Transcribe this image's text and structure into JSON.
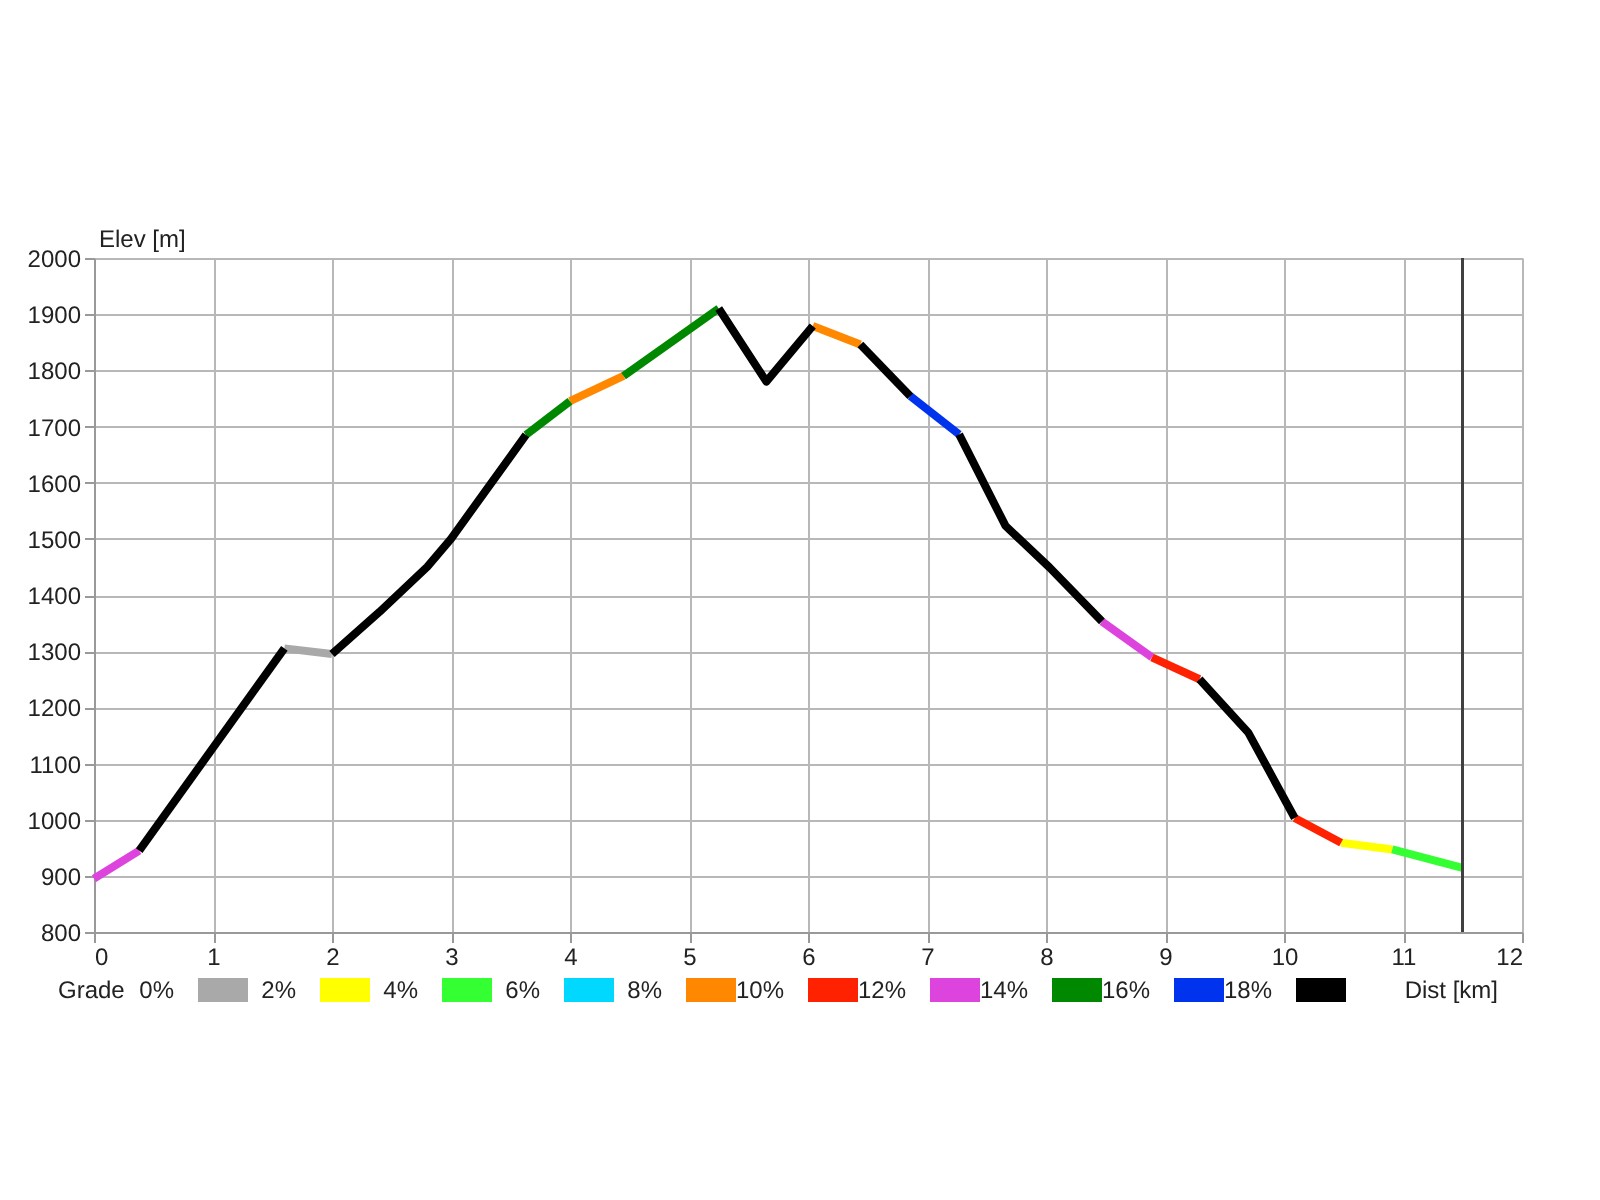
{
  "chart_data": {
    "type": "line",
    "xlabel": "Dist [km]",
    "ylabel": "Elev [m]",
    "legend_title": "Grade",
    "xlim": [
      0,
      12
    ],
    "xticks": [
      0,
      1,
      2,
      3,
      4,
      5,
      6,
      7,
      8,
      9,
      10,
      11,
      12
    ],
    "ylim": [
      800,
      2000
    ],
    "yticks": [
      800,
      900,
      1000,
      1100,
      1200,
      1300,
      1400,
      1500,
      1600,
      1700,
      1800,
      1900,
      2000
    ],
    "grid": true,
    "legend": "bottom",
    "ref_lines": [
      {
        "axis": "x",
        "value": 11.5,
        "color": "#404040"
      }
    ],
    "series": [
      {
        "name": "0%",
        "color": "#a9a9a9",
        "x": [
          1.6,
          2.0
        ],
        "values": [
          1305,
          1295
        ]
      },
      {
        "name": "2%",
        "color": "#ffff00",
        "x": [
          10.48,
          10.91
        ],
        "values": [
          959,
          947
        ]
      },
      {
        "name": "4%",
        "color": "#33ff33",
        "x": [
          10.91,
          11.5
        ],
        "values": [
          947,
          914
        ]
      },
      {
        "name": "6%",
        "color": "#00d8ff"
      },
      {
        "name": "8%",
        "color": "#ff8800",
        "x": [
          4.0,
          4.45,
          null,
          6.04,
          6.44
        ],
        "values": [
          1745,
          1790,
          null,
          1879,
          1846
        ]
      },
      {
        "name": "10%",
        "color": "#ff2200",
        "x": [
          8.89,
          9.29,
          null,
          10.09,
          10.48
        ],
        "values": [
          1289,
          1250,
          null,
          1003,
          959
        ]
      },
      {
        "name": "12%",
        "color": "#dd44dd",
        "x": [
          0,
          0.38,
          null,
          8.47,
          8.89
        ],
        "values": [
          895,
          945,
          null,
          1353,
          1289
        ]
      },
      {
        "name": "14%",
        "color": "#008800",
        "x": [
          3.63,
          4.0,
          null,
          4.45,
          5.25
        ],
        "values": [
          1685,
          1745,
          null,
          1790,
          1910
        ]
      },
      {
        "name": "16%",
        "color": "#0033ee",
        "x": [
          6.86,
          7.27
        ],
        "values": [
          1754,
          1686
        ]
      },
      {
        "name": "18%",
        "color": "#000000",
        "x": [
          0.38,
          1.6,
          null,
          2.0,
          2.4,
          2.8,
          3.0,
          3.63,
          null,
          5.25,
          5.65,
          6.04,
          null,
          6.44,
          6.86,
          null,
          7.27,
          7.66,
          8.03,
          8.47,
          null,
          9.29,
          9.7,
          10.09
        ],
        "values": [
          945,
          1305,
          null,
          1295,
          1370,
          1450,
          1500,
          1685,
          null,
          1910,
          1780,
          1879,
          null,
          1846,
          1754,
          null,
          1686,
          1523,
          1449,
          1353,
          null,
          1250,
          1155,
          1003
        ]
      }
    ]
  }
}
